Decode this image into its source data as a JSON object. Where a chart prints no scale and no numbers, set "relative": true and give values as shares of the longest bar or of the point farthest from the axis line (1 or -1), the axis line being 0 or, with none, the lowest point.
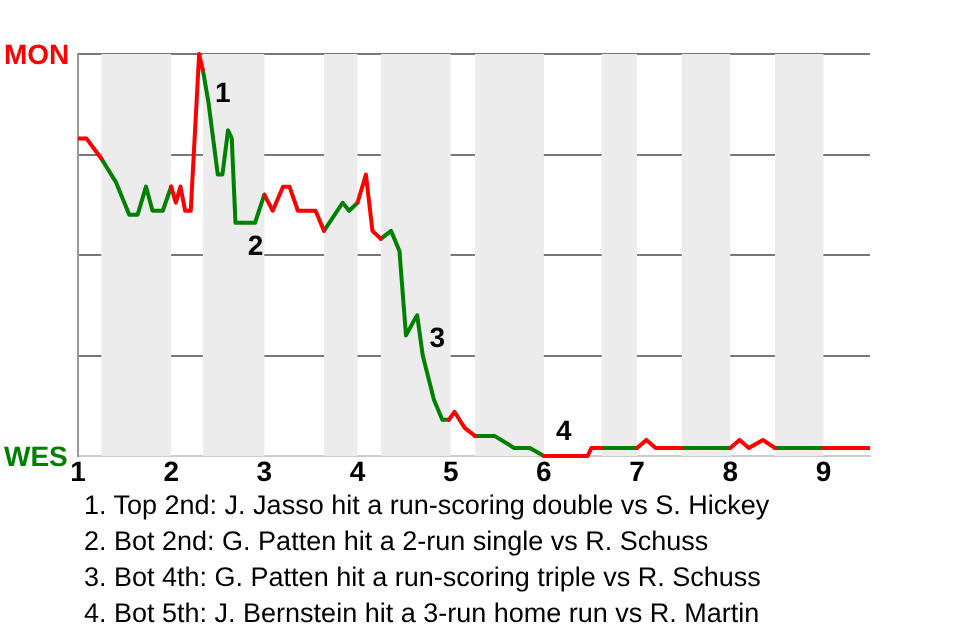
{
  "chart_data": {
    "type": "line",
    "relative": true,
    "xlim": [
      1,
      9.5
    ],
    "xticks": [
      1,
      2,
      3,
      4,
      5,
      6,
      7,
      8,
      9
    ],
    "grid": "y",
    "legend": "left",
    "marker": "none",
    "bands": [
      {
        "axis": "x",
        "from": 1.25,
        "to": 2,
        "color": "#ececec"
      },
      {
        "axis": "x",
        "from": 2.34,
        "to": 3,
        "color": "#ececec"
      },
      {
        "axis": "x",
        "from": 3.64,
        "to": 4,
        "color": "#ececec"
      },
      {
        "axis": "x",
        "from": 4.25,
        "to": 5,
        "color": "#ececec"
      },
      {
        "axis": "x",
        "from": 5.26,
        "to": 6,
        "color": "#ececec"
      },
      {
        "axis": "x",
        "from": 6.62,
        "to": 7,
        "color": "#ececec"
      },
      {
        "axis": "x",
        "from": 7.48,
        "to": 8,
        "color": "#ececec"
      },
      {
        "axis": "x",
        "from": 8.48,
        "to": 9,
        "color": "#ececec"
      }
    ],
    "series": [
      {
        "name": "MON",
        "color": "#ff0000",
        "x": [
          1,
          1.09,
          1.25,
          null,
          2,
          2.05,
          2.1,
          2.15,
          2.21,
          2.3,
          2.34,
          null,
          3,
          3.09,
          3.2,
          3.27,
          3.36,
          3.55,
          3.64,
          null,
          4,
          4.09,
          4.16,
          4.25,
          null,
          4.98,
          5.04,
          5.15,
          5.26,
          null,
          6,
          6.47,
          6.51,
          6.62,
          null,
          7,
          7.1,
          7.2,
          7.48,
          null,
          8,
          8.1,
          8.2,
          8.35,
          8.48,
          null,
          9,
          9.5
        ],
        "values": [
          0.79,
          0.79,
          0.74,
          null,
          0.67,
          0.63,
          0.67,
          0.61,
          0.61,
          1,
          0.96,
          null,
          0.65,
          0.61,
          0.67,
          0.67,
          0.61,
          0.61,
          0.56,
          null,
          0.63,
          0.7,
          0.56,
          0.54,
          null,
          0.09,
          0.11,
          0.07,
          0.05,
          null,
          0,
          0,
          0.02,
          0.02,
          null,
          0.02,
          0.04,
          0.02,
          0.02,
          null,
          0.02,
          0.04,
          0.02,
          0.04,
          0.02,
          null,
          0.02,
          0.02
        ]
      },
      {
        "name": "WES",
        "color": "#008000",
        "x": [
          1.25,
          1.41,
          1.55,
          1.64,
          1.73,
          1.8,
          1.91,
          2,
          null,
          2.34,
          2.4,
          2.5,
          2.55,
          2.61,
          2.65,
          2.69,
          2.9,
          3,
          null,
          3.64,
          3.84,
          3.91,
          4,
          null,
          4.25,
          4.36,
          4.45,
          4.52,
          4.59,
          4.64,
          4.7,
          4.82,
          4.91,
          4.98,
          null,
          5.26,
          5.47,
          5.68,
          5.85,
          6,
          null,
          6.62,
          7,
          null,
          7.48,
          8,
          null,
          8.48,
          9
        ],
        "values": [
          0.74,
          0.68,
          0.6,
          0.6,
          0.67,
          0.61,
          0.61,
          0.67,
          null,
          0.96,
          0.88,
          0.7,
          0.7,
          0.81,
          0.79,
          0.58,
          0.58,
          0.65,
          null,
          0.56,
          0.63,
          0.61,
          0.63,
          null,
          0.54,
          0.56,
          0.51,
          0.3,
          0.33,
          0.35,
          0.25,
          0.14,
          0.09,
          0.09,
          null,
          0.05,
          0.05,
          0.02,
          0.02,
          0,
          null,
          0.02,
          0.02,
          null,
          0.02,
          0.02,
          null,
          0.02,
          0.02
        ]
      }
    ],
    "annotations": [
      {
        "text": "1",
        "x": 2.34,
        "y": 0.96
      },
      {
        "text": "2",
        "x": 2.69,
        "y": 0.58
      },
      {
        "text": "3",
        "x": 4.64,
        "y": 0.35
      },
      {
        "text": "4",
        "x": 6,
        "y": 0
      },
      "1. Top 2nd: J. Jasso hit a run-scoring double vs S. Hickey",
      "2. Bot 2nd: G. Patten hit a 2-run single vs R. Schuss",
      "3. Bot 4th: G. Patten hit a run-scoring triple vs R. Schuss",
      "4. Bot 5th: J. Bernstein hit a 3-run home run vs R. Martin"
    ]
  }
}
